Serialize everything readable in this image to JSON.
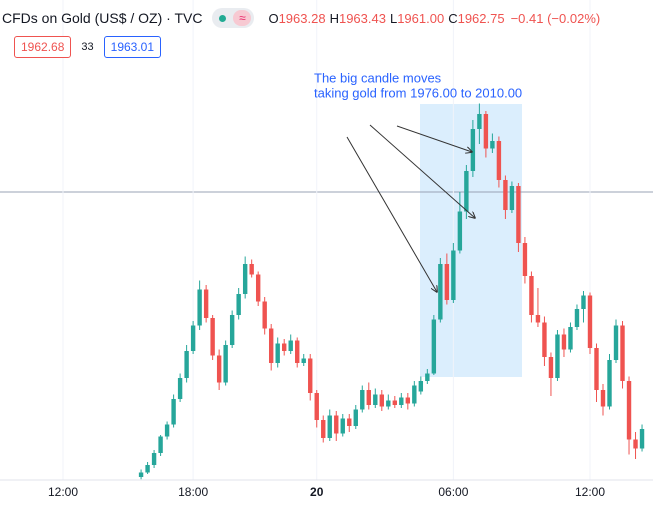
{
  "header": {
    "symbol": "CFDs on Gold (US$ / OZ) · TVC",
    "ohlc": [
      {
        "label": "O",
        "value": "1963.28"
      },
      {
        "label": "H",
        "value": "1963.43"
      },
      {
        "label": "L",
        "value": "1961.00"
      },
      {
        "label": "C",
        "value": "1962.75"
      }
    ],
    "change": "−0.41 (−0.02%)",
    "sell": "1962.68",
    "spread": "33",
    "buy": "1963.01"
  },
  "chart_data": {
    "type": "candlestick",
    "annotation": [
      "The big candle moves",
      "taking gold from 1976.00 to 2010.00"
    ],
    "categories": [
      null,
      null,
      null,
      null,
      null,
      null,
      null,
      null,
      "12:00",
      null,
      null,
      null,
      null,
      null,
      null,
      null,
      null,
      null,
      null,
      null,
      null,
      null,
      null,
      null,
      null,
      null,
      null,
      null,
      "18:00",
      null,
      null,
      null,
      null,
      null,
      null,
      null,
      null,
      null,
      null,
      null,
      null,
      null,
      null,
      null,
      null,
      null,
      null,
      "20",
      null,
      null,
      null,
      null,
      null,
      null,
      null,
      null,
      null,
      null,
      null,
      null,
      null,
      null,
      null,
      null,
      null,
      null,
      null,
      null,
      "06:00",
      null,
      null,
      null,
      null,
      null,
      null,
      null,
      null,
      null,
      null,
      null,
      null,
      null,
      null,
      null,
      null,
      null,
      null,
      null,
      null,
      "12:00",
      null,
      null,
      null,
      null,
      null,
      null,
      null,
      null
    ],
    "open": [
      null,
      null,
      null,
      null,
      null,
      null,
      null,
      null,
      null,
      null,
      null,
      null,
      null,
      null,
      null,
      null,
      null,
      null,
      null,
      null,
      1962.4,
      1963.0,
      1964.0,
      1965.6,
      1967.8,
      1969.4,
      1972.8,
      1975.6,
      1979.2,
      1982.6,
      1987.4,
      1983.6,
      1978.6,
      1975,
      1980,
      1984,
      1986.8,
      1990.8,
      1989.4,
      1985.8,
      1982.2,
      1977.6,
      1980.2,
      1979.2,
      1980.6,
      1977.6,
      1978.2,
      1973.6,
      1970,
      1967.6,
      1970.6,
      1968.2,
      1970.2,
      1969.2,
      1971.4,
      1974,
      1972,
      1973.4,
      1971.8,
      1972.6,
      1972,
      1973,
      1972.2,
      1973.8,
      1975.2,
      1976.2,
      1983.4,
      1990.8,
      1986,
      1992.6,
      1997.8,
      2003.2,
      2008.8,
      2010.8,
      2006.2,
      2007.2,
      2002,
      1998,
      2001.2,
      1993.6,
      1989.2,
      1984,
      1983,
      1978.4,
      1975.6,
      1981.4,
      1979.4,
      1982.4,
      1984.8,
      1986.6,
      1979.6,
      1974,
      1971.8,
      1978,
      1982.6,
      1975.2,
      1967.4,
      1966.2
    ],
    "high": [
      null,
      null,
      null,
      null,
      null,
      null,
      null,
      null,
      null,
      null,
      null,
      null,
      null,
      null,
      null,
      null,
      null,
      null,
      null,
      null,
      1963.4,
      1964.4,
      1966,
      1968,
      1969.8,
      1973.4,
      1976.2,
      1980,
      1983.2,
      1988.6,
      1988,
      1984,
      1979.4,
      1980.6,
      1984.6,
      1987.6,
      1991.8,
      1991.4,
      1989.8,
      1986.4,
      1982.8,
      1981,
      1980.8,
      1981.4,
      1981,
      1978.8,
      1978.8,
      1974,
      1970.6,
      1971.4,
      1971.2,
      1970.8,
      1970.8,
      1972,
      1974.6,
      1975,
      1974.2,
      1974,
      1973.4,
      1973.2,
      1973.6,
      1973.6,
      1975.2,
      1975.8,
      1976.8,
      1984,
      1991.6,
      1992.2,
      1993.6,
      2000.4,
      2004,
      2010,
      2012.2,
      2011.2,
      2008.2,
      2007.8,
      2002.6,
      2001.8,
      2001.6,
      1994.4,
      1989.8,
      1987.6,
      1983.8,
      1979,
      1982,
      1982.2,
      1983,
      1985.4,
      1987.2,
      1987,
      1980.2,
      1974.8,
      1978.8,
      1983.4,
      1983.2,
      1975.8,
      1968.4,
      1969.4
    ],
    "low": [
      null,
      null,
      null,
      null,
      null,
      null,
      null,
      null,
      null,
      null,
      null,
      null,
      null,
      null,
      null,
      null,
      null,
      null,
      null,
      null,
      1962.1,
      1962.8,
      1963.6,
      1965.2,
      1967.4,
      1969,
      1972.4,
      1975,
      1978.8,
      1982,
      1983,
      1978,
      1974,
      1974.6,
      1979.6,
      1983.4,
      1986.2,
      1989,
      1985.2,
      1981.4,
      1976.6,
      1977,
      1978.6,
      1978.8,
      1977,
      1977.2,
      1972.6,
      1969,
      1967,
      1967.2,
      1967.2,
      1967.8,
      1968.4,
      1968.8,
      1971,
      1971.4,
      1971.6,
      1971.2,
      1971.4,
      1971.6,
      1971.6,
      1971.4,
      1971.8,
      1973.4,
      1974.8,
      1976,
      1983,
      1985.4,
      1985.6,
      1992.2,
      1996.8,
      2002.4,
      2006.8,
      2005,
      2005.6,
      2001,
      1996.8,
      1997.6,
      1992.4,
      1988.2,
      1983,
      1982.4,
      1977.2,
      1973.2,
      1975.2,
      1978.4,
      1979,
      1982,
      1983,
      1978.8,
      1972.4,
      1970.6,
      1971.4,
      1977.6,
      1974.2,
      1965.4,
      1964.8,
      1965.8
    ],
    "close": [
      null,
      null,
      null,
      null,
      null,
      null,
      null,
      null,
      null,
      null,
      null,
      null,
      null,
      null,
      null,
      null,
      null,
      null,
      null,
      null,
      1963.0,
      1964.0,
      1965.6,
      1967.8,
      1969.4,
      1972.8,
      1975.6,
      1979.2,
      1982.6,
      1987.4,
      1983.6,
      1978.6,
      1975,
      1980,
      1984,
      1986.8,
      1990.8,
      1989.4,
      1985.8,
      1982.2,
      1977.6,
      1980.2,
      1979.2,
      1980.6,
      1977.6,
      1978.2,
      1973.6,
      1970,
      1967.6,
      1970.6,
      1968.2,
      1970.2,
      1969.2,
      1971.4,
      1974,
      1972,
      1973.4,
      1971.8,
      1972.6,
      1972,
      1973,
      1972.2,
      1974.6,
      1975.2,
      1976.2,
      1983.4,
      1990.8,
      1986,
      1992.6,
      1997.8,
      2003.2,
      2008.8,
      2010.8,
      2006.2,
      2007.2,
      2002,
      1998,
      2001.2,
      1993.6,
      1989.2,
      1984,
      1983,
      1978.4,
      1975.6,
      1981.4,
      1979.4,
      1982.4,
      1984.8,
      1986.6,
      1979.6,
      1974,
      1971.8,
      1978,
      1982.6,
      1975.2,
      1967.4,
      1966.2,
      1968.8
    ],
    "up_color": "#26a69a",
    "down_color": "#ef5350",
    "ylim": [
      1962,
      2026
    ],
    "grid": true
  }
}
